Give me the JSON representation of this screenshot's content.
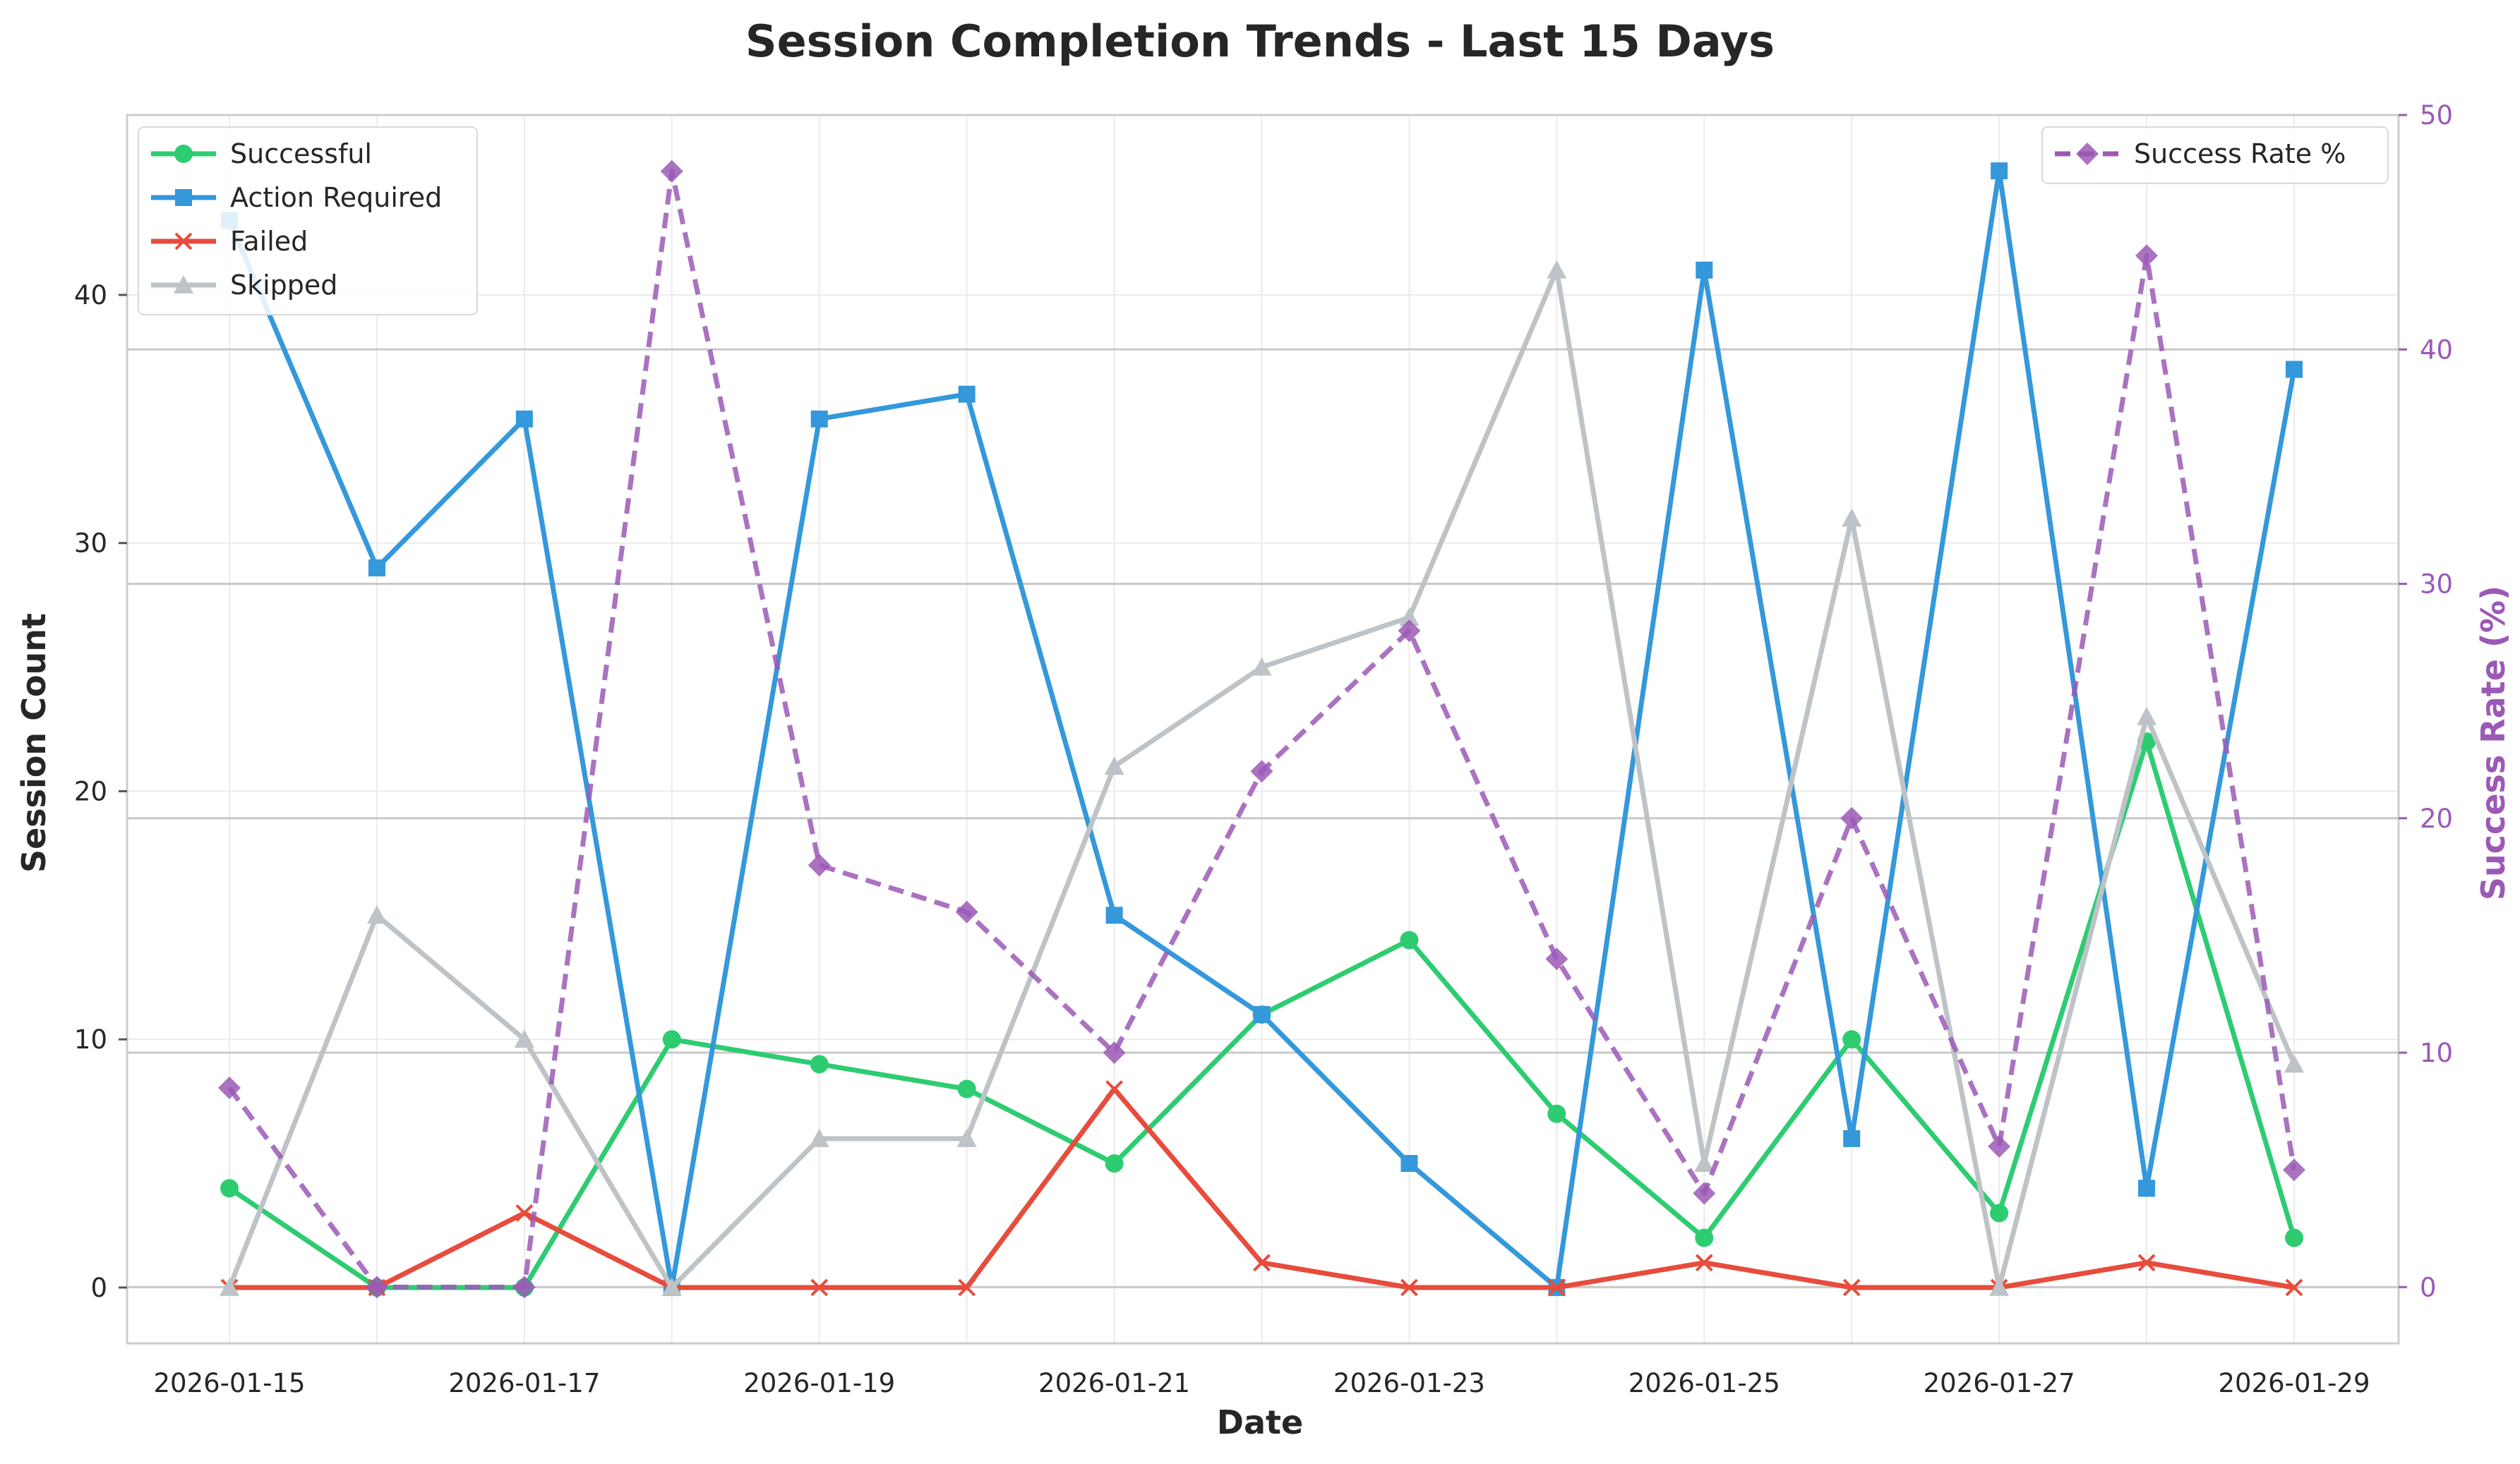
{
  "chart_data": {
    "type": "line",
    "title": "Session Completion Trends - Last 15 Days",
    "xlabel": "Date",
    "ylabel": "Session Count",
    "y2label": "Success Rate (%)",
    "x": [
      "2026-01-15",
      "2026-01-16",
      "2026-01-17",
      "2026-01-18",
      "2026-01-19",
      "2026-01-20",
      "2026-01-21",
      "2026-01-22",
      "2026-01-23",
      "2026-01-24",
      "2026-01-25",
      "2026-01-26",
      "2026-01-27",
      "2026-01-28",
      "2026-01-29"
    ],
    "x_tick_labels": [
      "2026-01-15",
      "2026-01-17",
      "2026-01-19",
      "2026-01-21",
      "2026-01-23",
      "2026-01-25",
      "2026-01-27",
      "2026-01-29"
    ],
    "ylim": [
      -2.25,
      47.25
    ],
    "y_ticks": [
      0,
      10,
      20,
      30,
      40
    ],
    "y2lim": [
      -2.4,
      50
    ],
    "y2_ticks": [
      0,
      10,
      20,
      30,
      40,
      50
    ],
    "grid": true,
    "series": [
      {
        "name": "Successful",
        "axis": "left",
        "color": "#2ecc71",
        "marker": "circle",
        "dash": false,
        "values": [
          4,
          0,
          0,
          10,
          9,
          8,
          5,
          11,
          14,
          7,
          2,
          10,
          3,
          22,
          2
        ]
      },
      {
        "name": "Action Required",
        "axis": "left",
        "color": "#3498db",
        "marker": "square",
        "dash": false,
        "values": [
          43,
          29,
          35,
          0,
          35,
          36,
          15,
          11,
          5,
          0,
          41,
          6,
          45,
          4,
          37
        ]
      },
      {
        "name": "Failed",
        "axis": "left",
        "color": "#e74c3c",
        "marker": "x",
        "dash": false,
        "values": [
          0,
          0,
          3,
          0,
          0,
          0,
          8,
          1,
          0,
          0,
          1,
          0,
          0,
          1,
          0
        ]
      },
      {
        "name": "Skipped",
        "axis": "left",
        "color": "#bdc3c7",
        "marker": "triangle",
        "dash": false,
        "values": [
          0,
          15,
          10,
          0,
          6,
          6,
          21,
          25,
          27,
          41,
          5,
          31,
          0,
          23,
          9
        ]
      },
      {
        "name": "Success Rate %",
        "axis": "right",
        "color": "#9b59b6",
        "marker": "diamond",
        "dash": true,
        "values": [
          8.5,
          0,
          0,
          47.6,
          18,
          16,
          10,
          22,
          28,
          14,
          4,
          20,
          6,
          44,
          5
        ]
      }
    ],
    "legend_left": {
      "placement": "top-left",
      "entries": [
        "Successful",
        "Action Required",
        "Failed",
        "Skipped"
      ]
    },
    "legend_right": {
      "placement": "top-right",
      "entries": [
        "Success Rate %"
      ]
    },
    "right_axis_color": "#9b59b6"
  }
}
